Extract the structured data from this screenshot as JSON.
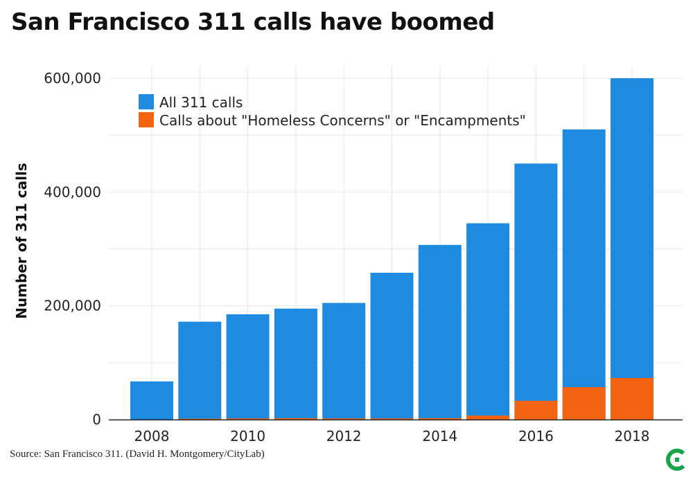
{
  "title": "San Francisco 311 calls have boomed",
  "source": "Source: San Francisco 311. (David H. Montgomery/CityLab)",
  "colors": {
    "all_calls": "#1f8be0",
    "homeless_calls": "#f26412",
    "grid": "#e6e6e6",
    "axis": "#222222",
    "logo": "#1aa54b"
  },
  "logo_icon": "citylab-c-logo-icon",
  "chart_data": {
    "type": "bar",
    "title": "San Francisco 311 calls have boomed",
    "xlabel": "",
    "ylabel": "Number of 311 calls",
    "ylim": [
      0,
      600000
    ],
    "y_ticks": [
      0,
      200000,
      400000,
      600000
    ],
    "y_tick_labels": [
      "0",
      "200,000",
      "400,000",
      "600,000"
    ],
    "categories": [
      "2008",
      "2009",
      "2010",
      "2011",
      "2012",
      "2013",
      "2014",
      "2015",
      "2016",
      "2017",
      "2018"
    ],
    "x_tick_labels": [
      "2008",
      "2010",
      "2012",
      "2014",
      "2016",
      "2018"
    ],
    "series": [
      {
        "name": "All 311 calls",
        "values": [
          67000,
          172000,
          185000,
          195000,
          205000,
          258000,
          307000,
          345000,
          450000,
          510000,
          600000
        ]
      },
      {
        "name": "Calls about \"Homeless Concerns\" or \"Encampments\"",
        "values": [
          0,
          1500,
          2000,
          2500,
          2000,
          2000,
          2500,
          7000,
          33000,
          57000,
          73000
        ]
      }
    ],
    "grid": true,
    "legend_position": "top-left"
  }
}
